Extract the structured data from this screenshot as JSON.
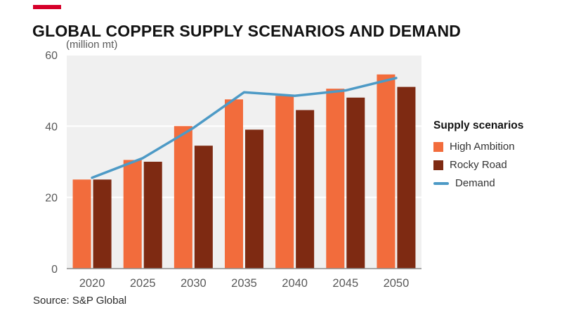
{
  "title": "GLOBAL COPPER SUPPLY SCENARIOS AND DEMAND",
  "unit_label": "(million mt)",
  "source": "Source: S&P Global",
  "colors": {
    "accent_red": "#D6002A",
    "high_ambition_orange": "#F26C3C",
    "rocky_road_brown": "#7E2A12",
    "demand_blue": "#4D9AC6",
    "plot_background": "#F0F0F0",
    "gridline": "#FFFFFF",
    "baseline": "#8C8C8C",
    "tick_text": "#595959"
  },
  "legend": {
    "title": "Supply scenarios",
    "items": [
      {
        "label": "High Ambition",
        "color": "#F26C3C",
        "type": "square"
      },
      {
        "label": "Rocky Road",
        "color": "#7E2A12",
        "type": "square"
      },
      {
        "label": "Demand",
        "color": "#4D9AC6",
        "type": "line"
      }
    ]
  },
  "chart_data": {
    "type": "bar",
    "subtype": "grouped-bars-with-line-overlay",
    "title": "GLOBAL COPPER SUPPLY SCENARIOS AND DEMAND",
    "xlabel": "",
    "ylabel": "(million mt)",
    "categories": [
      "2020",
      "2025",
      "2030",
      "2035",
      "2040",
      "2045",
      "2050"
    ],
    "series": [
      {
        "name": "High Ambition",
        "type": "bar",
        "color": "#F26C3C",
        "values": [
          25,
          30.5,
          40,
          47.5,
          48.5,
          50.5,
          54.5
        ]
      },
      {
        "name": "Rocky Road",
        "type": "bar",
        "color": "#7E2A12",
        "values": [
          25,
          30,
          34.5,
          39,
          44.5,
          48,
          51
        ]
      },
      {
        "name": "Demand",
        "type": "line",
        "color": "#4D9AC6",
        "values": [
          25.5,
          31,
          39.5,
          49.5,
          48.5,
          50,
          53.5
        ]
      }
    ],
    "ylim": [
      0,
      60
    ],
    "yticks": [
      0,
      20,
      40,
      60
    ],
    "grid": true,
    "legend_position": "right"
  }
}
